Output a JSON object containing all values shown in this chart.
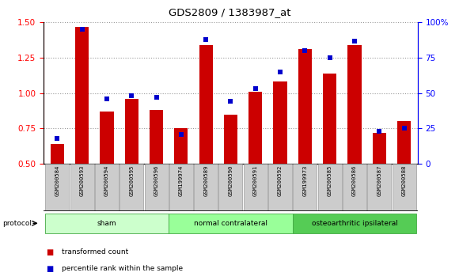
{
  "title": "GDS2809 / 1383987_at",
  "samples": [
    "GSM200584",
    "GSM200593",
    "GSM200594",
    "GSM200595",
    "GSM200596",
    "GSM199974",
    "GSM200589",
    "GSM200590",
    "GSM200591",
    "GSM200592",
    "GSM199973",
    "GSM200585",
    "GSM200586",
    "GSM200587",
    "GSM200588"
  ],
  "transformed_count": [
    0.64,
    1.47,
    0.87,
    0.96,
    0.88,
    0.75,
    1.34,
    0.85,
    1.01,
    1.08,
    1.31,
    1.14,
    1.34,
    0.72,
    0.8
  ],
  "percentile_rank": [
    18,
    95,
    46,
    48,
    47,
    21,
    88,
    44,
    53,
    65,
    80,
    75,
    87,
    23,
    25
  ],
  "groups": [
    {
      "label": "sham",
      "start": 0,
      "end": 5,
      "color": "#ccffcc"
    },
    {
      "label": "normal contralateral",
      "start": 5,
      "end": 10,
      "color": "#99ff99"
    },
    {
      "label": "osteoarthritic ipsilateral",
      "start": 10,
      "end": 15,
      "color": "#55cc55"
    }
  ],
  "ylim_left": [
    0.5,
    1.5
  ],
  "ylim_right": [
    0,
    100
  ],
  "yticks_left": [
    0.5,
    0.75,
    1.0,
    1.25,
    1.5
  ],
  "yticks_right": [
    0,
    25,
    50,
    75,
    100
  ],
  "bar_color": "#cc0000",
  "dot_color": "#0000cc",
  "grid_color": "#999999",
  "bg_color": "#ffffff",
  "label_bg": "#cccccc",
  "protocol_label": "protocol",
  "legend_items": [
    {
      "label": "transformed count",
      "color": "#cc0000"
    },
    {
      "label": "percentile rank within the sample",
      "color": "#0000cc"
    }
  ]
}
